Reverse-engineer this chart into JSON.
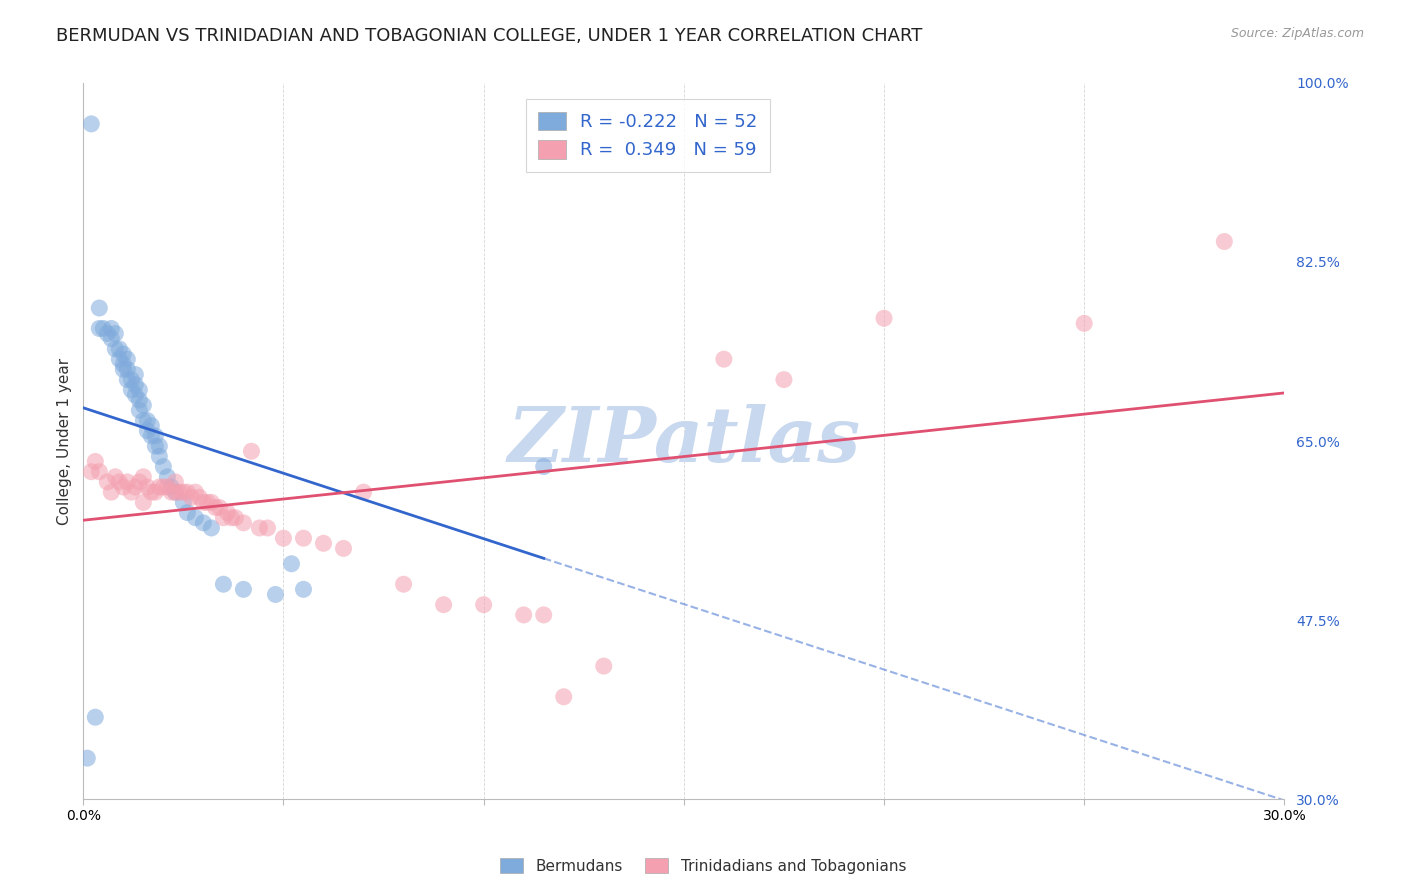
{
  "title": "BERMUDAN VS TRINIDADIAN AND TOBAGONIAN COLLEGE, UNDER 1 YEAR CORRELATION CHART",
  "source": "Source: ZipAtlas.com",
  "ylabel": "College, Under 1 year",
  "xlim": [
    0.0,
    0.3
  ],
  "ylim": [
    0.3,
    1.0
  ],
  "xticks": [
    0.0,
    0.05,
    0.1,
    0.15,
    0.2,
    0.25,
    0.3
  ],
  "xticklabels": [
    "0.0%",
    "",
    "",
    "",
    "",
    "",
    "30.0%"
  ],
  "yticks_right": [
    1.0,
    0.825,
    0.65,
    0.475,
    0.3
  ],
  "ytick_labels_right": [
    "100.0%",
    "82.5%",
    "65.0%",
    "47.5%",
    "30.0%"
  ],
  "blue_scatter_x": [
    0.002,
    0.004,
    0.004,
    0.005,
    0.006,
    0.007,
    0.007,
    0.008,
    0.008,
    0.009,
    0.009,
    0.01,
    0.01,
    0.01,
    0.011,
    0.011,
    0.011,
    0.012,
    0.012,
    0.013,
    0.013,
    0.013,
    0.014,
    0.014,
    0.014,
    0.015,
    0.015,
    0.016,
    0.016,
    0.017,
    0.017,
    0.018,
    0.018,
    0.019,
    0.019,
    0.02,
    0.021,
    0.022,
    0.023,
    0.025,
    0.026,
    0.028,
    0.03,
    0.032,
    0.035,
    0.04,
    0.048,
    0.052,
    0.055,
    0.115,
    0.001,
    0.003
  ],
  "blue_scatter_y": [
    0.96,
    0.78,
    0.76,
    0.76,
    0.755,
    0.76,
    0.75,
    0.74,
    0.755,
    0.73,
    0.74,
    0.72,
    0.725,
    0.735,
    0.71,
    0.72,
    0.73,
    0.7,
    0.71,
    0.695,
    0.705,
    0.715,
    0.68,
    0.69,
    0.7,
    0.67,
    0.685,
    0.66,
    0.67,
    0.655,
    0.665,
    0.645,
    0.655,
    0.635,
    0.645,
    0.625,
    0.615,
    0.605,
    0.6,
    0.59,
    0.58,
    0.575,
    0.57,
    0.565,
    0.51,
    0.505,
    0.5,
    0.53,
    0.505,
    0.625,
    0.34,
    0.38
  ],
  "pink_scatter_x": [
    0.002,
    0.003,
    0.004,
    0.006,
    0.007,
    0.008,
    0.009,
    0.01,
    0.011,
    0.012,
    0.013,
    0.014,
    0.015,
    0.015,
    0.016,
    0.017,
    0.018,
    0.019,
    0.02,
    0.021,
    0.022,
    0.023,
    0.023,
    0.024,
    0.025,
    0.026,
    0.027,
    0.028,
    0.029,
    0.03,
    0.031,
    0.032,
    0.033,
    0.034,
    0.035,
    0.036,
    0.037,
    0.038,
    0.04,
    0.042,
    0.044,
    0.046,
    0.05,
    0.055,
    0.06,
    0.065,
    0.07,
    0.08,
    0.09,
    0.1,
    0.11,
    0.115,
    0.12,
    0.13,
    0.16,
    0.175,
    0.2,
    0.25,
    0.285
  ],
  "pink_scatter_y": [
    0.62,
    0.63,
    0.62,
    0.61,
    0.6,
    0.615,
    0.61,
    0.605,
    0.61,
    0.6,
    0.605,
    0.61,
    0.615,
    0.59,
    0.605,
    0.6,
    0.6,
    0.605,
    0.605,
    0.605,
    0.6,
    0.6,
    0.61,
    0.6,
    0.6,
    0.6,
    0.595,
    0.6,
    0.595,
    0.59,
    0.59,
    0.59,
    0.585,
    0.585,
    0.575,
    0.58,
    0.575,
    0.575,
    0.57,
    0.64,
    0.565,
    0.565,
    0.555,
    0.555,
    0.55,
    0.545,
    0.6,
    0.51,
    0.49,
    0.49,
    0.48,
    0.48,
    0.4,
    0.43,
    0.73,
    0.71,
    0.77,
    0.765,
    0.845
  ],
  "blue_R": -0.222,
  "blue_N": 52,
  "pink_R": 0.349,
  "pink_N": 59,
  "blue_color": "#7faadc",
  "pink_color": "#f4a0b0",
  "blue_line_color": "#3366cc",
  "pink_line_color": "#e05070",
  "watermark": "ZIPatlas",
  "watermark_color": "#c8d8ee",
  "legend_label_blue": "Bermudans",
  "legend_label_pink": "Trinidadians and Tobagonians",
  "title_fontsize": 13,
  "axis_label_fontsize": 11,
  "tick_fontsize": 10,
  "background_color": "#ffffff",
  "grid_color": "#cccccc",
  "blue_line_solid_end": 0.115,
  "blue_line_dash_end": 0.3
}
